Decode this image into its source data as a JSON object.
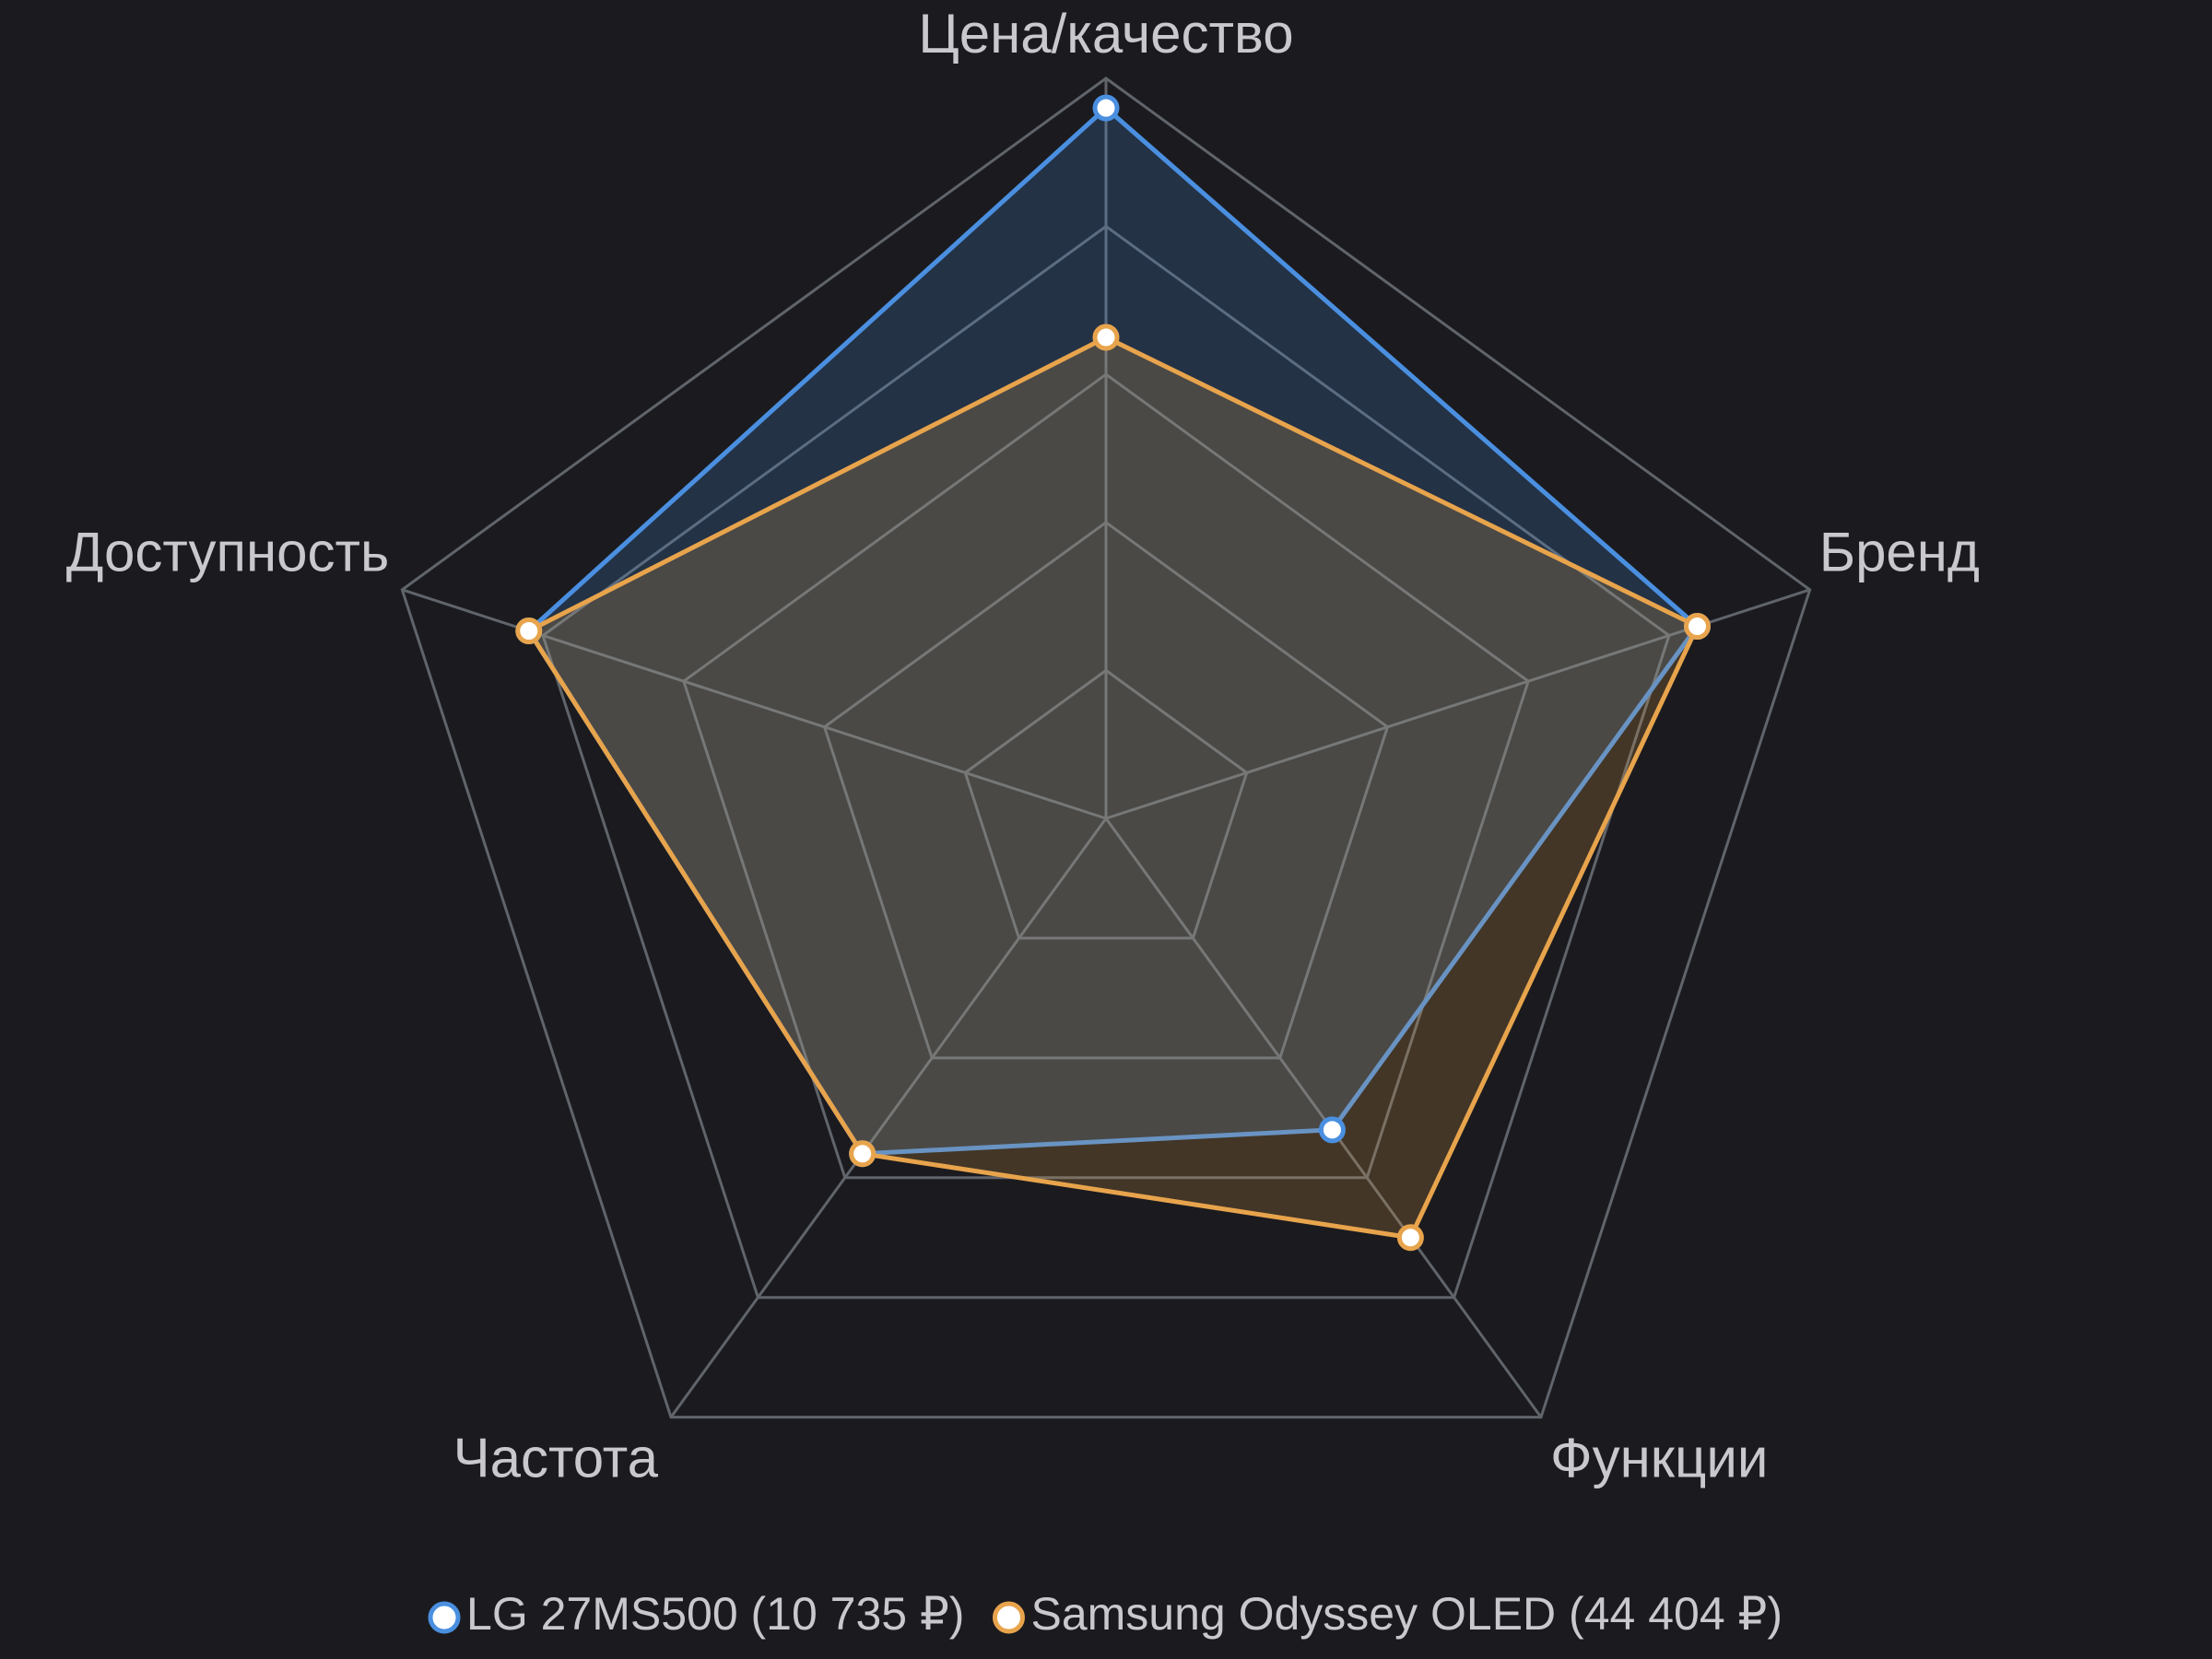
{
  "chart_data": {
    "type": "radar",
    "categories": [
      "Цена/качество",
      "Бренд",
      "Функции",
      "Частота",
      "Доступность"
    ],
    "series": [
      {
        "name": "LG 27MS500 (10 735 ₽)",
        "color": "#4a8fe0",
        "values": [
          96,
          84,
          52,
          56,
          82
        ]
      },
      {
        "name": "Samsung Odyssey OLED (44 404 ₽)",
        "color": "#e8a44c",
        "values": [
          65,
          84,
          70,
          56,
          82
        ]
      }
    ],
    "rlim": [
      0,
      100
    ],
    "rticks": [
      20,
      40,
      60,
      80,
      100
    ],
    "grid": true,
    "legend": "bottom"
  }
}
